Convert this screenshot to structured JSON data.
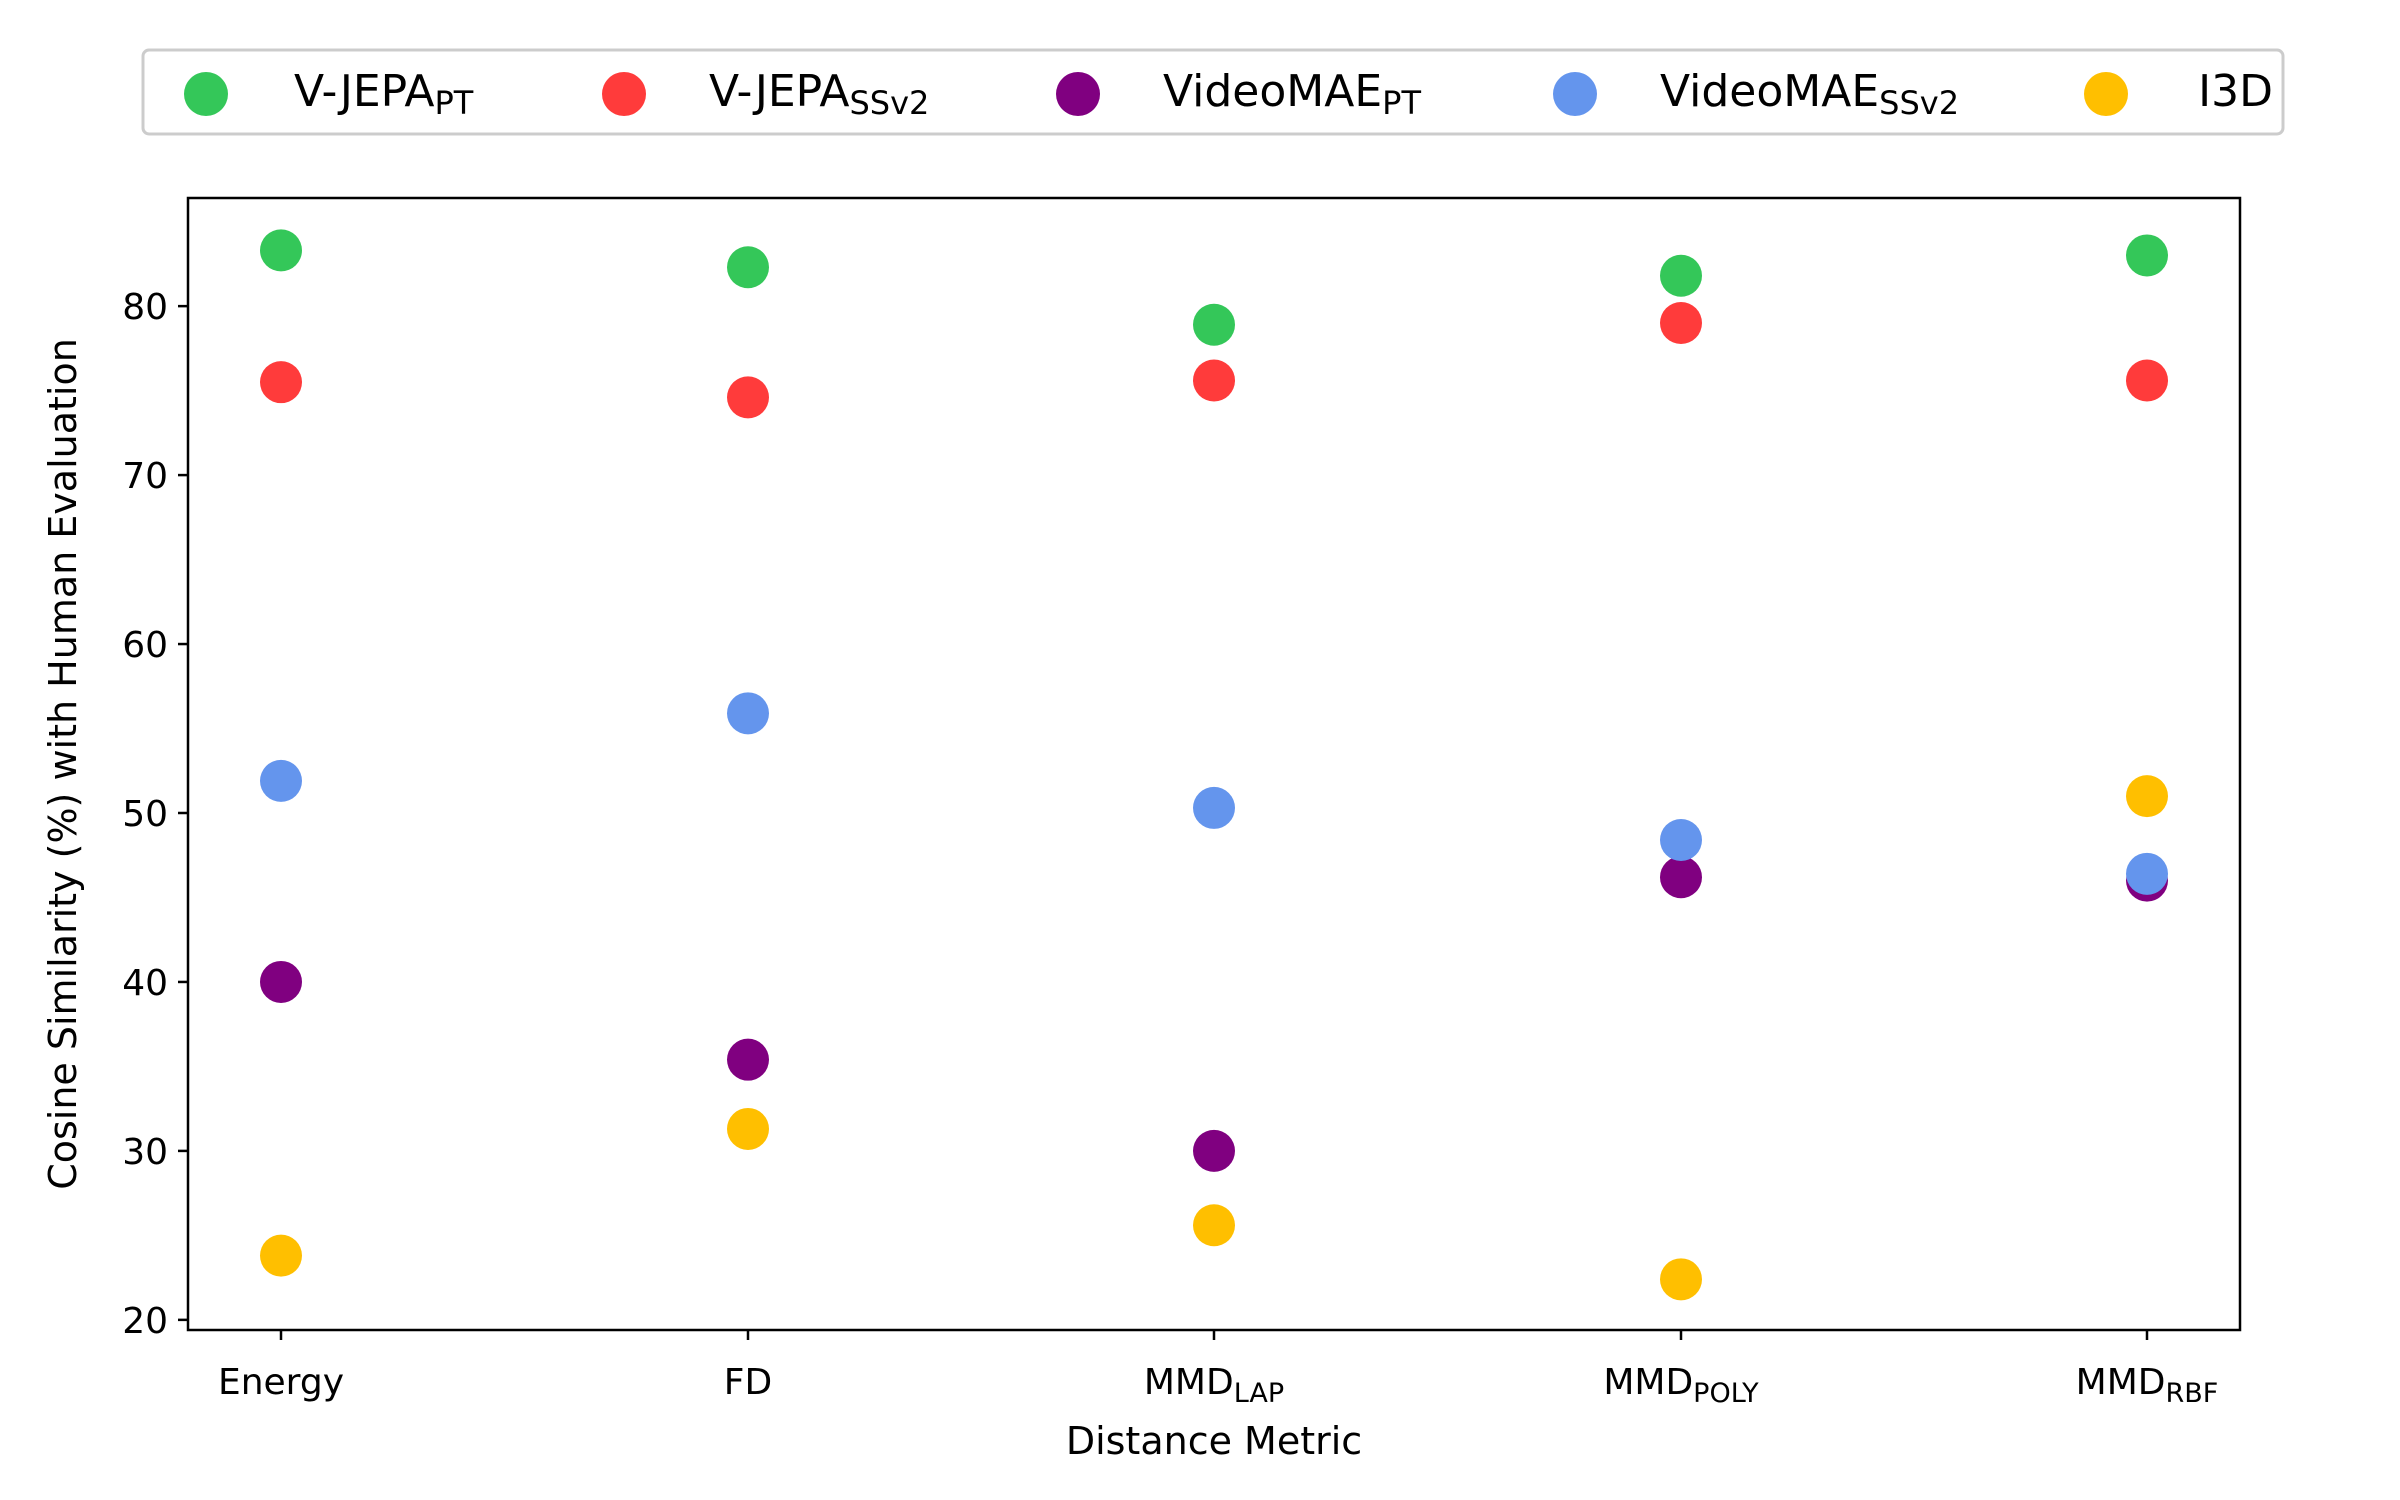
{
  "chart_data": {
    "type": "scatter",
    "xlabel": "Distance Metric",
    "ylabel": "Cosine Similarity (%) with Human Evaluation",
    "ylim": [
      19.4,
      86.4
    ],
    "yticks": [
      20,
      30,
      40,
      50,
      60,
      70,
      80
    ],
    "grid": false,
    "legend_position": "top",
    "categories": [
      {
        "main": "Energy",
        "sub": ""
      },
      {
        "main": "FD",
        "sub": ""
      },
      {
        "main": "MMD",
        "sub": "LAP"
      },
      {
        "main": "MMD",
        "sub": "POLY"
      },
      {
        "main": "MMD",
        "sub": "RBF"
      }
    ],
    "series": [
      {
        "name": "V-JEPA",
        "sub": "PT",
        "color": "#34c759",
        "values": [
          83.3,
          82.3,
          78.9,
          81.8,
          83.0
        ]
      },
      {
        "name": "V-JEPA",
        "sub": "SSv2",
        "color": "#ff3b3b",
        "values": [
          75.5,
          74.6,
          75.6,
          79.0,
          75.6
        ]
      },
      {
        "name": "VideoMAE",
        "sub": "PT",
        "color": "#800080",
        "values": [
          40.0,
          35.4,
          30.0,
          46.2,
          46.0
        ]
      },
      {
        "name": "VideoMAE",
        "sub": "SSv2",
        "color": "#6495ed",
        "values": [
          51.9,
          55.9,
          50.3,
          48.4,
          46.4
        ]
      },
      {
        "name": "I3D",
        "sub": "",
        "color": "#ffbf00",
        "values": [
          23.8,
          31.3,
          25.6,
          22.4,
          51.0
        ]
      }
    ]
  }
}
